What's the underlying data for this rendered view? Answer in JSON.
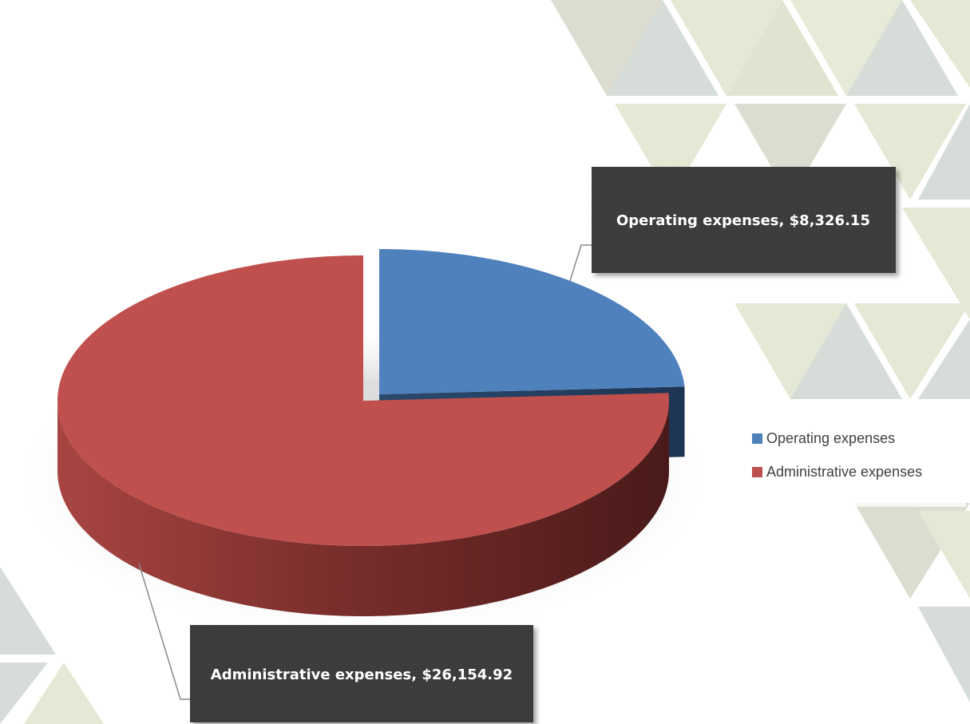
{
  "chart_data": {
    "type": "pie",
    "categories": [
      "Operating expenses",
      "Administrative expenses"
    ],
    "values": [
      8326.15,
      26154.92
    ],
    "value_labels": [
      "Operating expenses,  $8,326.15",
      "Administrative expenses,  $26,154.92"
    ],
    "colors": [
      "#4f81bd",
      "#c0504d"
    ],
    "legend": "right"
  }
}
